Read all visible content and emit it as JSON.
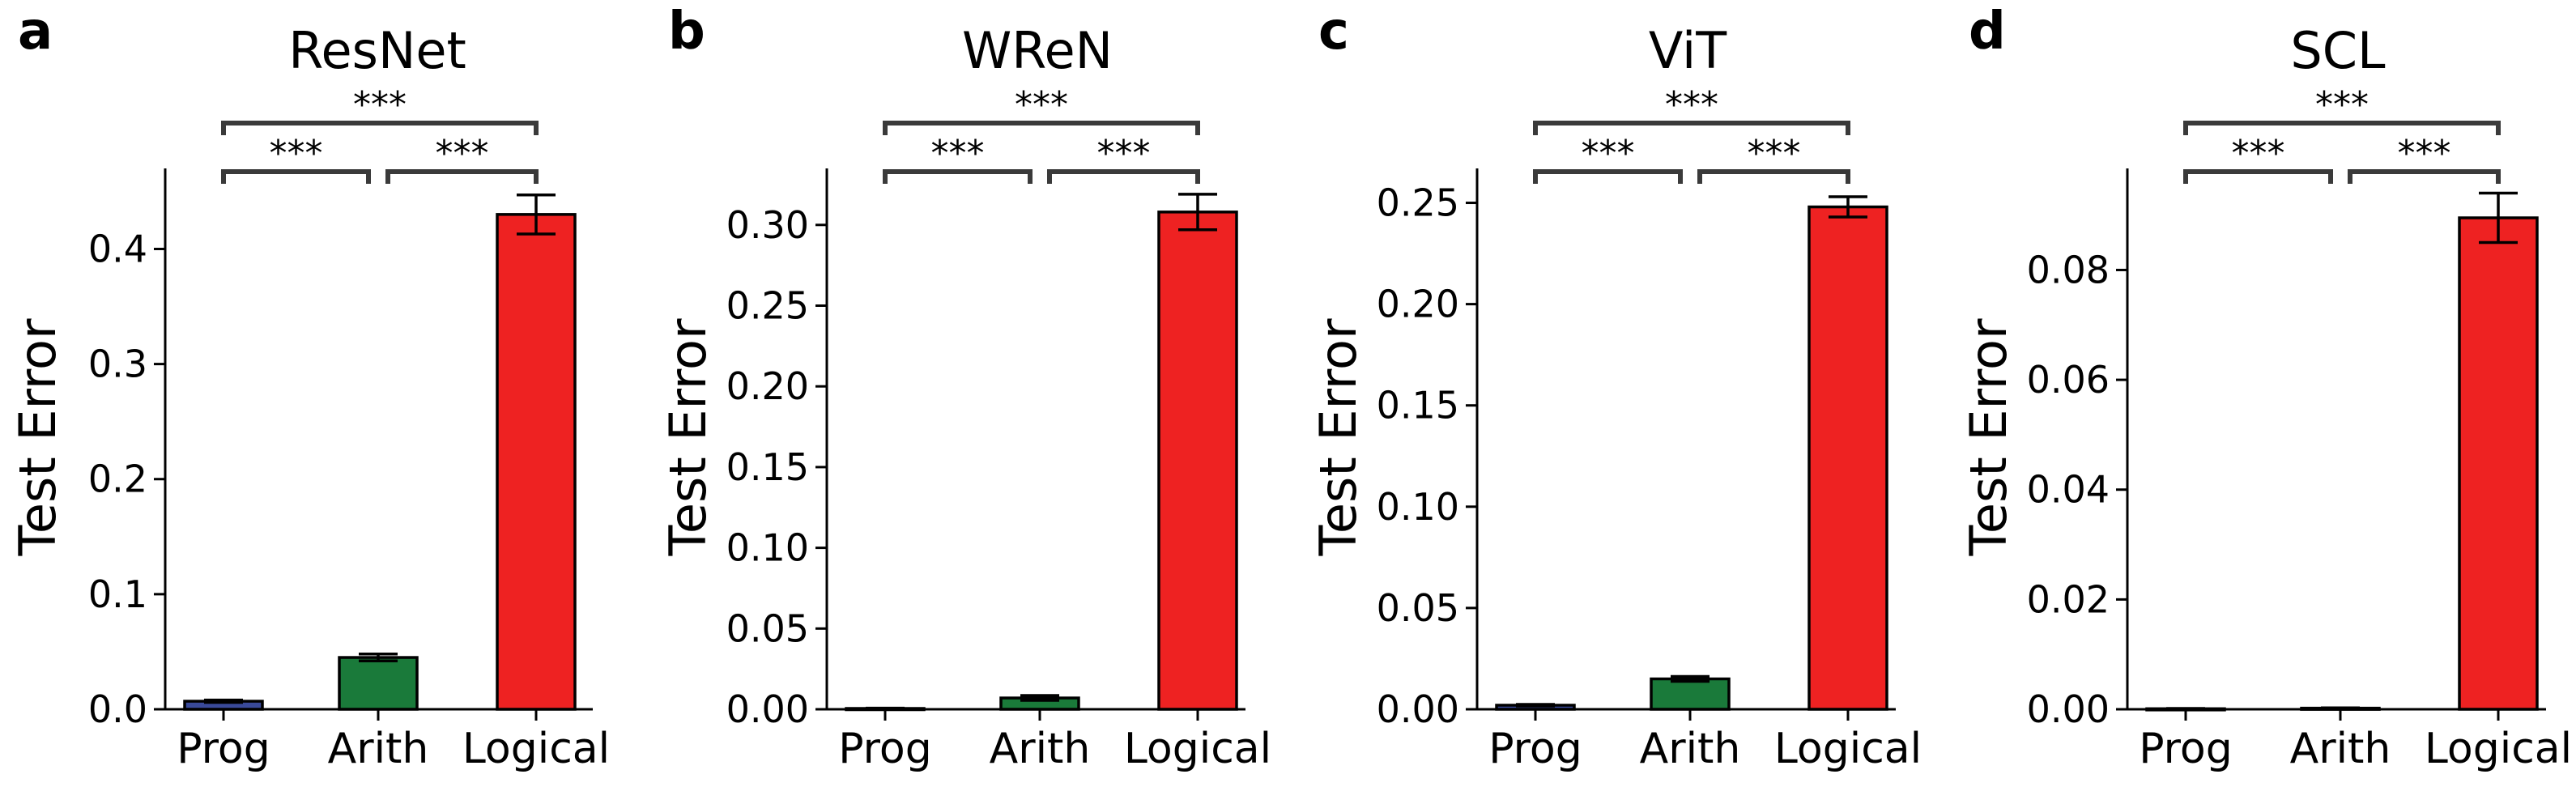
{
  "chart_data": [
    {
      "type": "bar",
      "panel": "a",
      "title": "ResNet",
      "ylabel": "Test Error",
      "xlabel": "",
      "categories": [
        "Prog",
        "Arith",
        "Logical"
      ],
      "values": [
        0.007,
        0.045,
        0.43
      ],
      "errors": [
        0.001,
        0.003,
        0.017
      ],
      "colors": [
        "#3a4a9a",
        "#1a7a3a",
        "#ee2222"
      ],
      "ylim": [
        0,
        0.47
      ],
      "yticks": [
        0.0,
        0.1,
        0.2,
        0.3,
        0.4
      ],
      "ytick_labels": [
        "0.0",
        "0.1",
        "0.2",
        "0.3",
        "0.4"
      ],
      "significance": [
        {
          "from": 0,
          "to": 1,
          "level": 0,
          "label": "***"
        },
        {
          "from": 1,
          "to": 2,
          "level": 0,
          "label": "***"
        },
        {
          "from": 0,
          "to": 2,
          "level": 1,
          "label": "***"
        }
      ]
    },
    {
      "type": "bar",
      "panel": "b",
      "title": "WReN",
      "ylabel": "Test Error",
      "xlabel": "",
      "categories": [
        "Prog",
        "Arith",
        "Logical"
      ],
      "values": [
        0.0005,
        0.007,
        0.308
      ],
      "errors": [
        0.0002,
        0.0015,
        0.011
      ],
      "colors": [
        "#3a4a9a",
        "#1a7a3a",
        "#ee2222"
      ],
      "ylim": [
        0,
        0.335
      ],
      "yticks": [
        0.0,
        0.05,
        0.1,
        0.15,
        0.2,
        0.25,
        0.3
      ],
      "ytick_labels": [
        "0.00",
        "0.05",
        "0.10",
        "0.15",
        "0.20",
        "0.25",
        "0.30"
      ],
      "significance": [
        {
          "from": 0,
          "to": 1,
          "level": 0,
          "label": "***"
        },
        {
          "from": 1,
          "to": 2,
          "level": 0,
          "label": "***"
        },
        {
          "from": 0,
          "to": 2,
          "level": 1,
          "label": "***"
        }
      ]
    },
    {
      "type": "bar",
      "panel": "c",
      "title": "ViT",
      "ylabel": "Test Error",
      "xlabel": "",
      "categories": [
        "Prog",
        "Arith",
        "Logical"
      ],
      "values": [
        0.002,
        0.015,
        0.248
      ],
      "errors": [
        0.0004,
        0.0012,
        0.005
      ],
      "colors": [
        "#3a4a9a",
        "#1a7a3a",
        "#ee2222"
      ],
      "ylim": [
        0,
        0.267
      ],
      "yticks": [
        0.0,
        0.05,
        0.1,
        0.15,
        0.2,
        0.25
      ],
      "ytick_labels": [
        "0.00",
        "0.05",
        "0.10",
        "0.15",
        "0.20",
        "0.25"
      ],
      "significance": [
        {
          "from": 0,
          "to": 1,
          "level": 0,
          "label": "***"
        },
        {
          "from": 1,
          "to": 2,
          "level": 0,
          "label": "***"
        },
        {
          "from": 0,
          "to": 2,
          "level": 1,
          "label": "***"
        }
      ]
    },
    {
      "type": "bar",
      "panel": "d",
      "title": "SCL",
      "ylabel": "Test Error",
      "xlabel": "",
      "categories": [
        "Prog",
        "Arith",
        "Logical"
      ],
      "values": [
        0.0001,
        0.0002,
        0.0895
      ],
      "errors": [
        5e-05,
        5e-05,
        0.0045
      ],
      "colors": [
        "#3a4a9a",
        "#1a7a3a",
        "#ee2222"
      ],
      "ylim": [
        0,
        0.0985
      ],
      "yticks": [
        0.0,
        0.02,
        0.04,
        0.06,
        0.08
      ],
      "ytick_labels": [
        "0.00",
        "0.02",
        "0.04",
        "0.06",
        "0.08"
      ],
      "significance": [
        {
          "from": 0,
          "to": 1,
          "level": 0,
          "label": "***"
        },
        {
          "from": 1,
          "to": 2,
          "level": 0,
          "label": "***"
        },
        {
          "from": 0,
          "to": 2,
          "level": 1,
          "label": "***"
        }
      ]
    }
  ]
}
